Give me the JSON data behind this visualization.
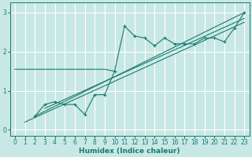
{
  "xlabel": "Humidex (Indice chaleur)",
  "bg_color": "#c8e8e5",
  "grid_color": "#ffffff",
  "line_color": "#1a7a6e",
  "xlim": [
    -0.5,
    23.5
  ],
  "ylim": [
    -0.15,
    3.25
  ],
  "yticks": [
    0,
    1,
    2,
    3
  ],
  "xticks": [
    0,
    1,
    2,
    3,
    4,
    5,
    6,
    7,
    8,
    9,
    10,
    11,
    12,
    13,
    14,
    15,
    16,
    17,
    18,
    19,
    20,
    21,
    22,
    23
  ],
  "series_flat_x": [
    0,
    1,
    2,
    3,
    4,
    5,
    6,
    7,
    8,
    9,
    10
  ],
  "series_flat_y": [
    1.55,
    1.55,
    1.55,
    1.55,
    1.55,
    1.55,
    1.55,
    1.55,
    1.55,
    1.55,
    1.5
  ],
  "series2_x": [
    2,
    3,
    4,
    5,
    6,
    7,
    8,
    9,
    10,
    11,
    12,
    13,
    14,
    15,
    16,
    17,
    18,
    19,
    20,
    21,
    22,
    23
  ],
  "series2_y": [
    0.35,
    0.65,
    0.72,
    0.65,
    0.65,
    0.4,
    0.9,
    0.9,
    1.5,
    2.65,
    2.4,
    2.35,
    2.15,
    2.35,
    2.2,
    2.2,
    2.2,
    2.35,
    2.35,
    2.25,
    2.6,
    3.0
  ],
  "line1_x": [
    2,
    23
  ],
  "line1_y": [
    0.35,
    3.0
  ],
  "line2_x": [
    3,
    23
  ],
  "line2_y": [
    0.55,
    2.85
  ],
  "line3_x": [
    1,
    23
  ],
  "line3_y": [
    0.2,
    2.75
  ],
  "tick_fontsize": 5.5,
  "xlabel_fontsize": 6.5
}
